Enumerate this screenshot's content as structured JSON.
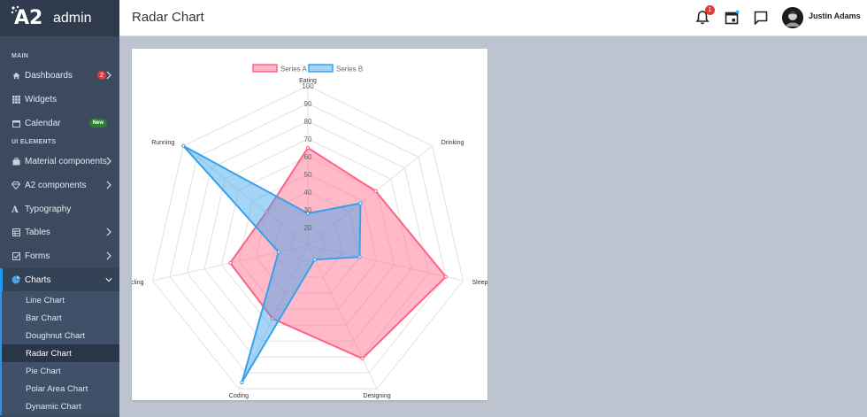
{
  "app": {
    "name": "admin",
    "logo_text": "A2"
  },
  "header": {
    "title": "Radar Chart",
    "notification_count": "1",
    "user_name": "Justin Adams"
  },
  "sidebar": {
    "section_main": "MAIN",
    "section_ui": "UI ELEMENTS",
    "items": [
      {
        "label": "Dashboards",
        "icon": "home-icon",
        "badge": "2"
      },
      {
        "label": "Widgets",
        "icon": "grid-icon"
      },
      {
        "label": "Calendar",
        "icon": "calendar-icon",
        "badge": "New"
      },
      {
        "label": "Material components",
        "icon": "briefcase-icon"
      },
      {
        "label": "A2 components",
        "icon": "diamond-icon"
      },
      {
        "label": "Typography",
        "icon": "typography-icon"
      },
      {
        "label": "Tables",
        "icon": "table-icon"
      },
      {
        "label": "Forms",
        "icon": "checkbox-icon"
      },
      {
        "label": "Charts",
        "icon": "pie-chart-icon"
      }
    ],
    "chart_subitems": [
      "Line Chart",
      "Bar Chart",
      "Doughnut Chart",
      "Radar Chart",
      "Pie Chart",
      "Polar Area Chart",
      "Dynamic Chart"
    ]
  },
  "colors": {
    "series_a": "#ff6384",
    "series_b": "#36a2eb",
    "sidebar_bg": "#3c4a5f",
    "accent": "#2196f3"
  },
  "chart_data": {
    "type": "radar",
    "categories": [
      "Eating",
      "Drinking",
      "Sleeping",
      "Designing",
      "Coding",
      "Cycling",
      "Running"
    ],
    "series": [
      {
        "name": "Series A",
        "values": [
          65,
          59,
          90,
          81,
          56,
          55,
          40
        ]
      },
      {
        "name": "Series B",
        "values": [
          28,
          48,
          40,
          19,
          96,
          27,
          100
        ]
      }
    ],
    "r_ticks": [
      "20",
      "30",
      "40",
      "50",
      "60",
      "70",
      "80",
      "90",
      "100"
    ],
    "rlim": [
      10,
      100
    ],
    "legend": "top"
  }
}
